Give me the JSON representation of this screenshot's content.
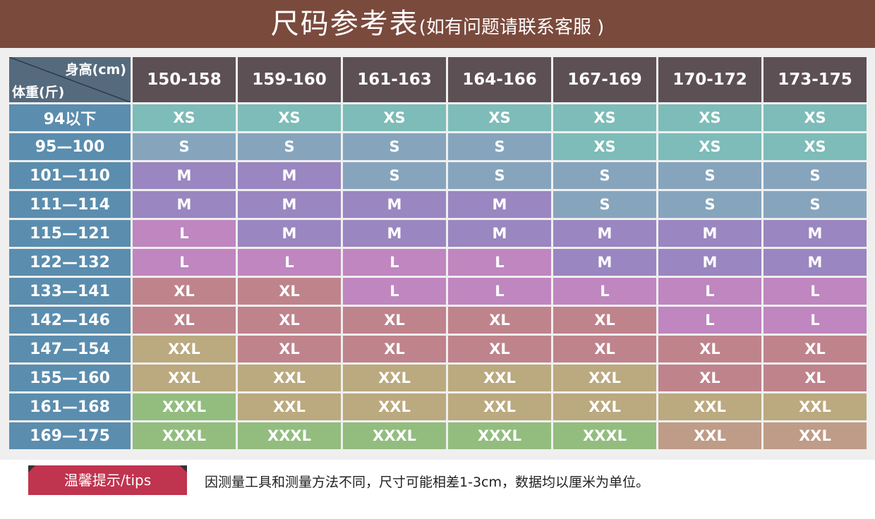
{
  "title": {
    "main": "尺码参考表",
    "note": "(如有问题请联系客服 )"
  },
  "corner": {
    "height_label": "身高(cm)",
    "weight_label": "体重(斤)"
  },
  "columns": [
    "150-158",
    "159-160",
    "161-163",
    "164-166",
    "167-169",
    "170-172",
    "173-175"
  ],
  "colors": {
    "XS": "#7dbcb8",
    "S": "#86a5bd",
    "M": "#9a86c0",
    "L": "#bf86bf",
    "XL": "#bf838c",
    "XXL": "#bba97f",
    "XXXL": "#93bd7f",
    "XXL_alt": "#bf9c87"
  },
  "rows": [
    {
      "label": "94以下",
      "cells": [
        "XS",
        "XS",
        "XS",
        "XS",
        "XS",
        "XS",
        "XS"
      ]
    },
    {
      "label": "95—100",
      "cells": [
        "S",
        "S",
        "S",
        "S",
        "XS",
        "XS",
        "XS"
      ]
    },
    {
      "label": "101—110",
      "cells": [
        "M",
        "M",
        "S",
        "S",
        "S",
        "S",
        "S"
      ]
    },
    {
      "label": "111—114",
      "cells": [
        "M",
        "M",
        "M",
        "M",
        "S",
        "S",
        "S"
      ]
    },
    {
      "label": "115—121",
      "cells": [
        "L",
        "M",
        "M",
        "M",
        "M",
        "M",
        "M"
      ]
    },
    {
      "label": "122—132",
      "cells": [
        "L",
        "L",
        "L",
        "L",
        "M",
        "M",
        "M"
      ]
    },
    {
      "label": "133—141",
      "cells": [
        "XL",
        "XL",
        "L",
        "L",
        "L",
        "L",
        "L"
      ]
    },
    {
      "label": "142—146",
      "cells": [
        "XL",
        "XL",
        "XL",
        "XL",
        "XL",
        "L",
        "L"
      ]
    },
    {
      "label": "147—154",
      "cells": [
        "XXL",
        "XL",
        "XL",
        "XL",
        "XL",
        "XL",
        "XL"
      ]
    },
    {
      "label": "155—160",
      "cells": [
        "XXL",
        "XXL",
        "XXL",
        "XXL",
        "XXL",
        "XL",
        "XL"
      ]
    },
    {
      "label": "161—168",
      "cells": [
        "XXXL",
        "XXL",
        "XXL",
        "XXL",
        "XXL",
        "XXL",
        "XXL"
      ]
    },
    {
      "label": "169—175",
      "cells": [
        "XXXL",
        "XXXL",
        "XXXL",
        "XXXL",
        "XXXL",
        "XXL",
        "XXL"
      ]
    }
  ],
  "tips": {
    "badge": "温馨提示/tips",
    "text": "因测量工具和测量方法不同，尺寸可能相差1-3cm，数据均以厘米为单位。"
  }
}
